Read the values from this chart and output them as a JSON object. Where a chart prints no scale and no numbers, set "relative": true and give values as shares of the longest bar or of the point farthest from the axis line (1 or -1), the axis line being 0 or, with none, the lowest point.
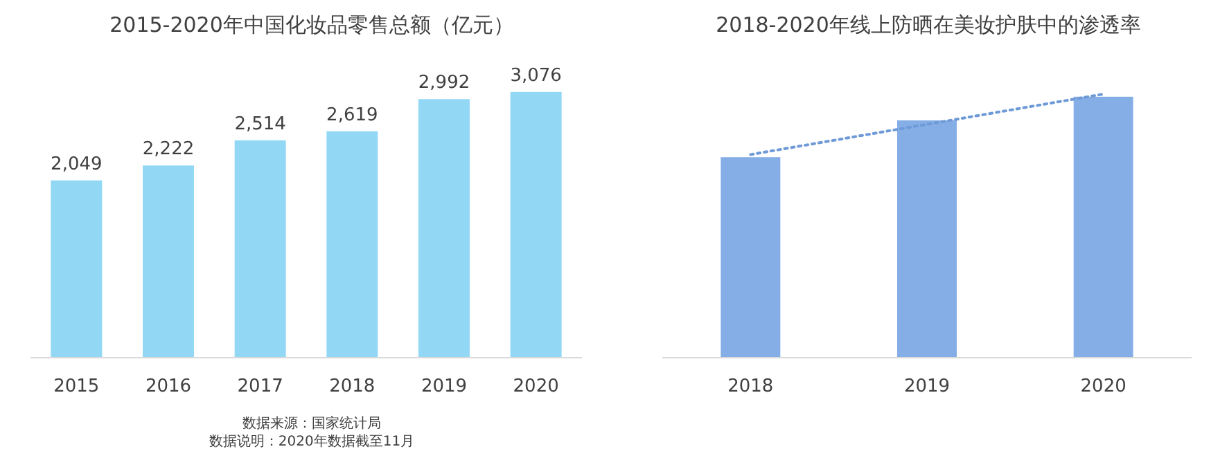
{
  "chart_data": [
    {
      "type": "bar",
      "title": "2015-2020年中国化妆品零售总额（亿元）",
      "categories": [
        "2015",
        "2016",
        "2017",
        "2018",
        "2019",
        "2020"
      ],
      "values": [
        2049,
        2222,
        2514,
        2619,
        2992,
        3076
      ],
      "value_labels": [
        "2,049",
        "2,222",
        "2,514",
        "2,619",
        "2,992",
        "3,076"
      ],
      "color": "#92d8f5",
      "annotations": [
        "数据来源：国家统计局",
        "数据说明：2020年数据截至11月"
      ]
    },
    {
      "type": "bar",
      "title": "2018-2020年线上防晒在美妆护肤中的渗透率",
      "categories": [
        "2018",
        "2019",
        "2020"
      ],
      "relative": true,
      "series": [
        {
          "color": "#86aee6",
          "values": [
            0.76,
            0.9,
            0.99
          ]
        },
        {
          "type": "line",
          "color": "#6f9ad8",
          "line_style": "dotted",
          "marker": "none",
          "values": [
            0.77,
            0.885,
            1.0
          ]
        }
      ]
    }
  ]
}
